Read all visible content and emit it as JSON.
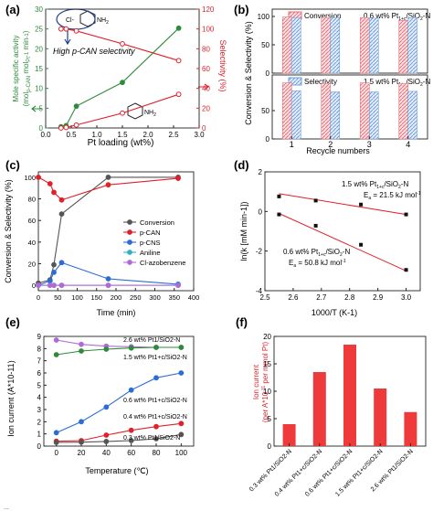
{
  "colors": {
    "green": "#2e8b3a",
    "red": "#e0202a",
    "red_fill": "#ee3a3a",
    "blue": "#2a6dd4",
    "gray": "#555555",
    "purple": "#b06ad8",
    "cyan": "#2fb3c9",
    "hatch_red": "#e8707a",
    "hatch_blue": "#6f9fd8",
    "black": "#222222"
  },
  "caption_fragment": "...",
  "chart_data": [
    {
      "panel": "(a)",
      "type": "line",
      "xlabel": "Pt loading (wt%)",
      "ylabel_left": "Mole specific activity (mol_p-CAN mol_Pt^-1 min^-1)",
      "ylabel_right": "Selectivity (%)",
      "xlim": [
        0,
        3.0
      ],
      "ylim_left": [
        0,
        30
      ],
      "ylim_right": [
        0,
        120
      ],
      "xticks": [
        "0.0",
        "0.5",
        "1.0",
        "1.5",
        "2.0",
        "2.5",
        "3.0"
      ],
      "yticks_left": [
        "0",
        "5",
        "10",
        "15",
        "20",
        "25",
        "30"
      ],
      "yticks_right": [
        "0",
        "20",
        "40",
        "60",
        "80",
        "100",
        "120"
      ],
      "annotation": "High p-CAN selectivity",
      "molecule_top": "Cl-C6H4-NH2",
      "molecule_bottom": "C6H5-NH2",
      "series": [
        {
          "axis": "left",
          "color": "green",
          "x": [
            0.3,
            0.4,
            0.6,
            1.5,
            2.6
          ],
          "y": [
            0.3,
            0.6,
            5.5,
            11.5,
            25.2
          ]
        },
        {
          "axis": "right",
          "color": "red",
          "label": "selectivity",
          "x": [
            0.3,
            0.4,
            0.6,
            1.5,
            2.6
          ],
          "y": [
            100,
            100,
            98,
            85,
            68
          ]
        },
        {
          "axis": "right",
          "color": "red",
          "label": "aniline",
          "x": [
            0.3,
            0.4,
            0.6,
            1.5,
            2.6
          ],
          "y": [
            0,
            0.5,
            3,
            15,
            34
          ]
        }
      ]
    },
    {
      "panel": "(b)",
      "type": "bar",
      "xlabel": "Recycle numbers",
      "ylabel": "Conversion & Selectivity (%)",
      "categories": [
        "1",
        "2",
        "3",
        "4"
      ],
      "ylim": [
        0,
        100
      ],
      "yticks_top": [
        "0",
        "50",
        "100"
      ],
      "yticks_bottom": [
        "0",
        "50"
      ],
      "legend": [
        "Conversion",
        "Selectivity"
      ],
      "subplots": [
        {
          "label": "0.6 wt% Pt1+c/SiO2-N",
          "series": [
            {
              "name": "Conversion",
              "values": [
                99,
                98,
                98,
                93
              ]
            },
            {
              "name": "Selectivity",
              "values": [
                98,
                98,
                97,
                98
              ]
            }
          ]
        },
        {
          "label": "1.5 wt% Pt1+c/SiO2-N",
          "series": [
            {
              "name": "Conversion",
              "values": [
                99,
                98,
                99,
                98
              ]
            },
            {
              "name": "Selectivity",
              "values": [
                85,
                83,
                83,
                84
              ]
            }
          ]
        }
      ]
    },
    {
      "panel": "(c)",
      "type": "line",
      "xlabel": "Time (min)",
      "ylabel": "Conversion & Selectivity (%)",
      "xlim": [
        0,
        400
      ],
      "ylim": [
        0,
        100
      ],
      "xticks": [
        "0",
        "50",
        "100",
        "150",
        "200",
        "250",
        "300",
        "350",
        "400"
      ],
      "yticks": [
        "0",
        "20",
        "40",
        "60",
        "80",
        "100"
      ],
      "series": [
        {
          "name": "Conversion",
          "color": "gray",
          "x": [
            0,
            30,
            40,
            60,
            180,
            360
          ],
          "y": [
            2,
            5,
            19,
            66,
            100,
            100
          ]
        },
        {
          "name": "p-CAN",
          "color": "red",
          "x": [
            0,
            30,
            40,
            60,
            180,
            360
          ],
          "y": [
            100,
            94,
            86,
            79,
            93,
            99
          ]
        },
        {
          "name": "p-CNS",
          "color": "blue",
          "x": [
            0,
            30,
            40,
            60,
            180,
            360
          ],
          "y": [
            0,
            4,
            12,
            21,
            6,
            1
          ]
        },
        {
          "name": "Aniline",
          "color": "cyan",
          "x": [
            0,
            30,
            40,
            60,
            180,
            360
          ],
          "y": [
            0,
            0,
            0,
            0,
            0,
            0
          ]
        },
        {
          "name": "Cl-azobenzene",
          "color": "purple",
          "x": [
            0,
            30,
            40,
            60,
            180,
            360
          ],
          "y": [
            0,
            0,
            0,
            0,
            0,
            0
          ]
        }
      ]
    },
    {
      "panel": "(d)",
      "type": "scatter",
      "xlabel": "1000/T (K-1)",
      "ylabel": "ln(k [mM min-1])",
      "xlim": [
        2.5,
        3.05
      ],
      "ylim": [
        -4,
        2
      ],
      "xticks": [
        "2.5",
        "2.6",
        "2.7",
        "2.8",
        "2.9",
        "3.0"
      ],
      "yticks": [
        "-4",
        "-2",
        "0",
        "2"
      ],
      "series": [
        {
          "name": "1.5 wt% Pt1+c/SiO2-N",
          "note": "Ea = 21.5 kJ mol-1",
          "x": [
            2.55,
            2.68,
            2.84,
            3.0
          ],
          "y": [
            0.76,
            0.55,
            0.35,
            -0.15
          ],
          "fit": [
            [
              2.55,
              0.9
            ],
            [
              3.0,
              -0.15
            ]
          ]
        },
        {
          "name": "0.6 wt% Pt1+c/SiO2-N",
          "note": "Ea = 50.8 kJ mol-1",
          "x": [
            2.55,
            2.68,
            2.84,
            3.0
          ],
          "y": [
            -0.15,
            -0.72,
            -1.68,
            -2.95
          ],
          "fit": [
            [
              2.55,
              -0.1
            ],
            [
              3.0,
              -3.0
            ]
          ]
        }
      ]
    },
    {
      "panel": "(e)",
      "type": "line",
      "xlabel": "Temperature (℃)",
      "ylabel": "Ion current (A*10-11)",
      "xlim": [
        -10,
        110
      ],
      "ylim": [
        0,
        9
      ],
      "xticks": [
        "0",
        "20",
        "40",
        "60",
        "80",
        "100"
      ],
      "yticks": [
        "0",
        "1",
        "2",
        "3",
        "4",
        "5",
        "6",
        "7",
        "8",
        "9"
      ],
      "series": [
        {
          "name": "2.6 wt% Pt1/SiO2-N",
          "color": "purple",
          "x": [
            0,
            20,
            40,
            60,
            80,
            100
          ],
          "y": [
            8.7,
            8.35,
            8.2,
            8.15,
            8.1,
            8.1
          ]
        },
        {
          "name": "1.5 wt% Pt1+c/SiO2-N",
          "color": "green",
          "x": [
            0,
            20,
            40,
            60,
            80,
            100
          ],
          "y": [
            7.5,
            7.8,
            7.95,
            8.05,
            8.1,
            8.1
          ]
        },
        {
          "name": "0.6 wt% Pt1+c/SiO2-N",
          "color": "blue",
          "x": [
            0,
            20,
            40,
            60,
            80,
            100
          ],
          "y": [
            1.1,
            2.0,
            3.2,
            4.6,
            5.6,
            6.0
          ]
        },
        {
          "name": "0.4 wt% Pt1+c/SiO2-N",
          "color": "red",
          "x": [
            0,
            20,
            40,
            60,
            80,
            100
          ],
          "y": [
            0.4,
            0.45,
            0.9,
            1.3,
            1.6,
            1.85
          ]
        },
        {
          "name": "0.3 wt% Pt1/SiO2-N",
          "color": "gray",
          "x": [
            0,
            20,
            40,
            60,
            80,
            100
          ],
          "y": [
            0.3,
            0.32,
            0.38,
            0.45,
            0.6,
            0.95
          ]
        }
      ]
    },
    {
      "panel": "(f)",
      "type": "bar",
      "ylabel": "Ion current (per A*10-11 per mmol Pt)",
      "ylim": [
        0,
        20
      ],
      "yticks": [
        "0",
        "5",
        "10",
        "15",
        "20"
      ],
      "categories": [
        "0.3 wt% Pt1/SiO2-N",
        "0.4 wt% Pt1+c/SiO2-N",
        "0.6 wt% Pt1+c/SiO2-N",
        "1.5 wt% Pt1+c/SiO2-N",
        "2.6 wt% Pt1/SiO2-N"
      ],
      "values": [
        4.0,
        13.5,
        18.5,
        10.5,
        6.2
      ]
    }
  ]
}
